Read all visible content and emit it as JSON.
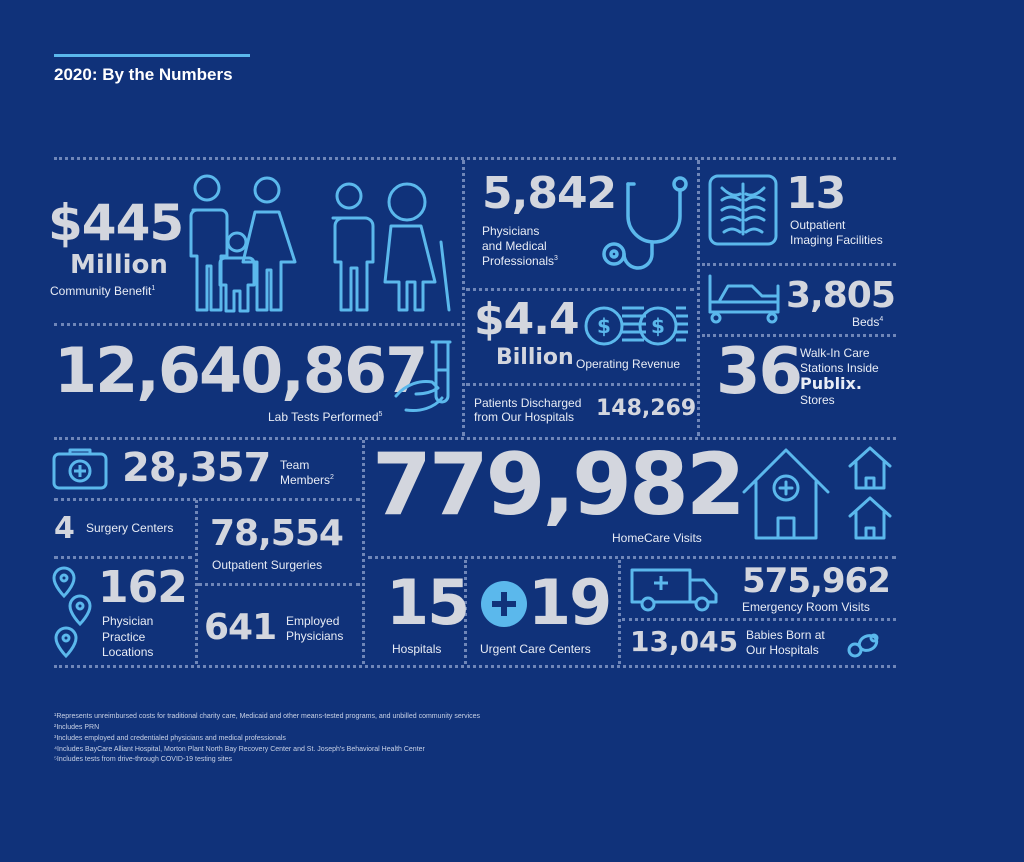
{
  "header": {
    "title": "2020: By the Numbers"
  },
  "community": {
    "value": "$445",
    "unit": "Million",
    "label": "Community Benefit",
    "note": "1"
  },
  "physicians": {
    "value": "5,842",
    "label_line1": "Physicians",
    "label_line2": "and Medical",
    "label_line3": "Professionals",
    "note": "3"
  },
  "imaging": {
    "value": "13",
    "label_line1": "Outpatient",
    "label_line2": "Imaging Facilities"
  },
  "beds": {
    "value": "3,805",
    "label": "Beds",
    "note": "4"
  },
  "revenue": {
    "value": "$4.4",
    "unit": "Billion",
    "label": "Operating Revenue"
  },
  "lab": {
    "value": "12,640,867",
    "label": "Lab Tests Performed",
    "note": "5"
  },
  "discharged": {
    "label_line1": "Patients Discharged",
    "label_line2": "from Our Hospitals",
    "value": "148,269"
  },
  "walkin": {
    "value": "36",
    "label_line1": "Walk-In Care",
    "label_line2": "Stations Inside",
    "brand": "Publix.",
    "label_line3": "Stores"
  },
  "team": {
    "value": "28,357",
    "label_line1": "Team",
    "label_line2": "Members",
    "note": "2"
  },
  "homecare": {
    "value": "779,982",
    "label": "HomeCare Visits"
  },
  "surgery_centers": {
    "value": "4",
    "label": "Surgery Centers"
  },
  "outpatient_surgeries": {
    "value": "78,554",
    "label": "Outpatient Surgeries"
  },
  "practice": {
    "value": "162",
    "label_line1": "Physician",
    "label_line2": "Practice",
    "label_line3": "Locations"
  },
  "employed": {
    "value": "641",
    "label_line1": "Employed",
    "label_line2": "Physicians"
  },
  "hospitals": {
    "value": "15",
    "label": "Hospitals"
  },
  "urgent": {
    "value": "19",
    "label": "Urgent Care Centers"
  },
  "er": {
    "value": "575,962",
    "label": "Emergency Room Visits"
  },
  "babies": {
    "value": "13,045",
    "label_line1": "Babies Born at",
    "label_line2": "Our Hospitals"
  },
  "footnotes": [
    "¹Represents unreimbursed costs for traditional charity care, Medicaid and other means-tested programs, and unbilled community services",
    "²Includes PRN",
    "³Includes employed and credentialed physicians and medical professionals",
    "⁴Includes BayCare Alliant Hospital, Morton Plant North Bay Recovery Center and St. Joseph's Behavioral Health Center",
    "⁵Includes tests from drive-through COVID-19 testing sites"
  ],
  "colors": {
    "background": "#10327a",
    "accent": "#5bb8ec",
    "number": "#d3d6de"
  }
}
